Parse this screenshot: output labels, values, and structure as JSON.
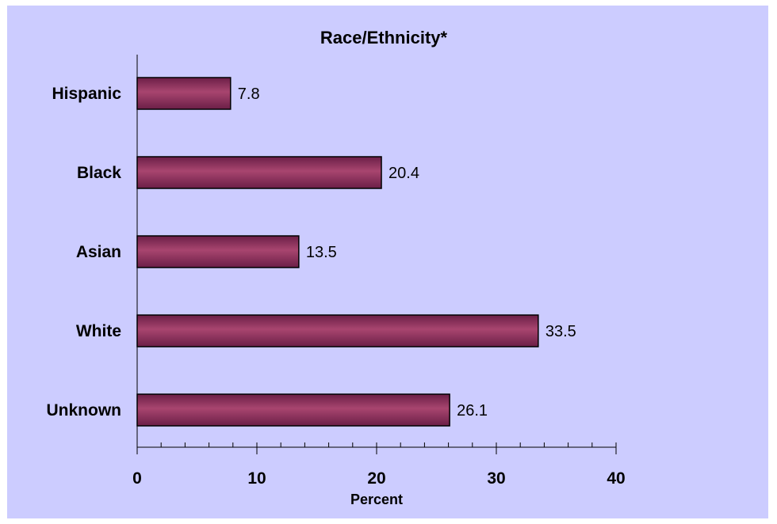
{
  "chart_data": {
    "type": "bar",
    "orientation": "horizontal",
    "title": "Race/Ethnicity*",
    "xlabel": "Percent",
    "ylabel": "",
    "categories": [
      "Hispanic",
      "Black",
      "Asian",
      "White",
      "Unknown"
    ],
    "values": [
      7.8,
      20.4,
      13.5,
      33.5,
      26.1
    ],
    "value_labels": [
      "7.8",
      "20.4",
      "13.5",
      "33.5",
      "26.1"
    ],
    "xlim": [
      0,
      40
    ],
    "x_ticks": [
      "0",
      "10",
      "20",
      "30",
      "40"
    ],
    "minor_tick_step": 2,
    "grid": false,
    "legend": "none",
    "colors": {
      "background": "#ccccff",
      "bar_dark": "#6b1f47",
      "bar_light": "#a8456f",
      "bar_stroke": "#000000"
    }
  }
}
